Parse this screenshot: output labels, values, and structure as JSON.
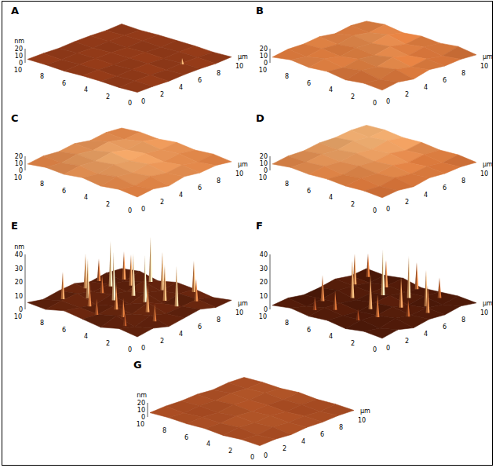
{
  "chart_data": [
    {
      "type": "surface",
      "panel": "A",
      "z_label": "nm",
      "x_label": "µm",
      "xlim": [
        0,
        10
      ],
      "ylim": [
        0,
        10
      ],
      "zlim": [
        0,
        20
      ],
      "xticks": [
        0,
        2,
        4,
        6,
        8,
        10
      ],
      "yticks": [
        0,
        2,
        4,
        6,
        8,
        10
      ],
      "zticks": [
        0,
        10,
        20
      ],
      "heights": [
        [
          5,
          5,
          4,
          5,
          5,
          4,
          5
        ],
        [
          4,
          5,
          5,
          4,
          5,
          5,
          4
        ],
        [
          5,
          4,
          5,
          5,
          4,
          5,
          5
        ],
        [
          5,
          5,
          4,
          5,
          5,
          4,
          5
        ],
        [
          4,
          5,
          5,
          5,
          4,
          5,
          5
        ],
        [
          5,
          4,
          5,
          4,
          5,
          5,
          4
        ],
        [
          5,
          5,
          4,
          5,
          5,
          4,
          5
        ]
      ],
      "peaks": [
        {
          "x": 6.5,
          "y": 1.5,
          "z": 14
        }
      ]
    },
    {
      "type": "surface",
      "panel": "B",
      "x_label": "µm",
      "xlim": [
        0,
        10
      ],
      "ylim": [
        0,
        10
      ],
      "zlim": [
        0,
        20
      ],
      "xticks": [
        0,
        2,
        4,
        6,
        8,
        10
      ],
      "yticks": [
        0,
        2,
        4,
        6,
        8,
        10
      ],
      "zticks": [
        0,
        10,
        20
      ],
      "heights": [
        [
          8,
          11,
          7,
          12,
          9,
          10,
          8
        ],
        [
          10,
          7,
          13,
          8,
          11,
          7,
          12
        ],
        [
          7,
          12,
          9,
          14,
          8,
          12,
          9
        ],
        [
          11,
          8,
          12,
          9,
          13,
          8,
          11
        ],
        [
          9,
          13,
          8,
          12,
          10,
          14,
          8
        ],
        [
          12,
          8,
          11,
          9,
          13,
          9,
          12
        ],
        [
          8,
          11,
          10,
          12,
          8,
          11,
          9
        ]
      ],
      "peaks": []
    },
    {
      "type": "surface",
      "panel": "C",
      "x_label": "µm",
      "xlim": [
        0,
        10
      ],
      "ylim": [
        0,
        10
      ],
      "zlim": [
        0,
        20
      ],
      "xticks": [
        0,
        2,
        4,
        6,
        8,
        10
      ],
      "yticks": [
        0,
        2,
        4,
        6,
        8,
        10
      ],
      "zticks": [
        0,
        10,
        20
      ],
      "heights": [
        [
          9,
          12,
          8,
          13,
          10,
          12,
          9
        ],
        [
          12,
          9,
          14,
          10,
          13,
          9,
          12
        ],
        [
          9,
          14,
          11,
          15,
          10,
          13,
          10
        ],
        [
          13,
          10,
          15,
          12,
          14,
          11,
          13
        ],
        [
          10,
          14,
          12,
          16,
          11,
          15,
          10
        ],
        [
          12,
          10,
          14,
          11,
          15,
          10,
          12
        ],
        [
          9,
          12,
          10,
          13,
          9,
          12,
          10
        ]
      ],
      "peaks": []
    },
    {
      "type": "surface",
      "panel": "D",
      "x_label": "µm",
      "xlim": [
        0,
        10
      ],
      "ylim": [
        0,
        10
      ],
      "zlim": [
        0,
        20
      ],
      "xticks": [
        0,
        2,
        4,
        6,
        8,
        10
      ],
      "yticks": [
        0,
        2,
        4,
        6,
        8,
        10
      ],
      "zticks": [
        0,
        10,
        20
      ],
      "heights": [
        [
          8,
          10,
          7,
          11,
          9,
          10,
          8
        ],
        [
          10,
          8,
          12,
          9,
          11,
          8,
          11
        ],
        [
          9,
          12,
          10,
          13,
          9,
          12,
          10
        ],
        [
          11,
          9,
          13,
          11,
          14,
          10,
          13
        ],
        [
          10,
          13,
          11,
          15,
          12,
          16,
          12
        ],
        [
          12,
          11,
          14,
          12,
          16,
          13,
          15
        ],
        [
          9,
          12,
          11,
          14,
          13,
          15,
          14
        ]
      ],
      "peaks": []
    },
    {
      "type": "surface",
      "panel": "E",
      "z_label": "nm",
      "x_label": "µm",
      "xlim": [
        0,
        10
      ],
      "ylim": [
        0,
        10
      ],
      "zlim": [
        0,
        40
      ],
      "xticks": [
        0,
        2,
        4,
        6,
        8,
        10
      ],
      "yticks": [
        0,
        2,
        4,
        6,
        8,
        10
      ],
      "zticks": [
        0,
        10,
        20,
        30,
        40
      ],
      "heights": [
        [
          4,
          6,
          3,
          5,
          7,
          4,
          5
        ],
        [
          6,
          3,
          7,
          4,
          5,
          6,
          3
        ],
        [
          3,
          7,
          4,
          8,
          3,
          6,
          5
        ],
        [
          5,
          4,
          6,
          3,
          7,
          4,
          6
        ],
        [
          7,
          5,
          3,
          6,
          4,
          7,
          3
        ],
        [
          4,
          6,
          7,
          4,
          5,
          3,
          6
        ],
        [
          5,
          3,
          5,
          6,
          3,
          5,
          4
        ]
      ],
      "peaks": [
        {
          "x": 2,
          "y": 8.5,
          "z": 26
        },
        {
          "x": 3.5,
          "y": 7.5,
          "z": 34
        },
        {
          "x": 5,
          "y": 9,
          "z": 30
        },
        {
          "x": 6.5,
          "y": 8,
          "z": 38
        },
        {
          "x": 2.5,
          "y": 6.5,
          "z": 22
        },
        {
          "x": 4.5,
          "y": 6,
          "z": 40
        },
        {
          "x": 7.5,
          "y": 7,
          "z": 28
        },
        {
          "x": 6,
          "y": 5.5,
          "z": 36
        },
        {
          "x": 3,
          "y": 4.5,
          "z": 24
        },
        {
          "x": 8.5,
          "y": 5,
          "z": 32
        },
        {
          "x": 5.5,
          "y": 4,
          "z": 40
        },
        {
          "x": 7,
          "y": 3.5,
          "z": 30
        },
        {
          "x": 4,
          "y": 2.5,
          "z": 26
        },
        {
          "x": 2,
          "y": 3,
          "z": 20
        },
        {
          "x": 6.5,
          "y": 2,
          "z": 34
        },
        {
          "x": 8,
          "y": 1.5,
          "z": 22
        },
        {
          "x": 9,
          "y": 6.5,
          "z": 38
        },
        {
          "x": 8.5,
          "y": 8.5,
          "z": 24
        },
        {
          "x": 7,
          "y": 9.5,
          "z": 20
        },
        {
          "x": 3,
          "y": 1,
          "z": 18
        },
        {
          "x": 1.5,
          "y": 5,
          "z": 16
        },
        {
          "x": 9.5,
          "y": 3,
          "z": 28
        },
        {
          "x": 5,
          "y": 7.5,
          "z": 18
        },
        {
          "x": 1,
          "y": 2,
          "z": 14
        }
      ]
    },
    {
      "type": "surface",
      "panel": "F",
      "x_label": "µm",
      "xlim": [
        0,
        10
      ],
      "ylim": [
        0,
        10
      ],
      "zlim": [
        0,
        40
      ],
      "xticks": [
        0,
        2,
        4,
        6,
        8,
        10
      ],
      "yticks": [
        0,
        2,
        4,
        6,
        8,
        10
      ],
      "zticks": [
        0,
        10,
        20,
        30,
        40
      ],
      "heights": [
        [
          3,
          5,
          2,
          4,
          3,
          5,
          3
        ],
        [
          4,
          2,
          5,
          3,
          4,
          2,
          4
        ],
        [
          2,
          4,
          3,
          5,
          2,
          4,
          3
        ],
        [
          4,
          3,
          2,
          4,
          5,
          3,
          2
        ],
        [
          3,
          5,
          4,
          2,
          3,
          4,
          5
        ],
        [
          5,
          2,
          3,
          5,
          4,
          2,
          3
        ],
        [
          3,
          4,
          2,
          3,
          5,
          3,
          4
        ]
      ],
      "peaks": [
        {
          "x": 3,
          "y": 8,
          "z": 22
        },
        {
          "x": 5,
          "y": 7,
          "z": 30
        },
        {
          "x": 7,
          "y": 8.5,
          "z": 26
        },
        {
          "x": 2,
          "y": 6,
          "z": 18
        },
        {
          "x": 6.5,
          "y": 5.5,
          "z": 38
        },
        {
          "x": 8,
          "y": 6.5,
          "z": 24
        },
        {
          "x": 4,
          "y": 4.5,
          "z": 28
        },
        {
          "x": 7.5,
          "y": 4,
          "z": 34
        },
        {
          "x": 3,
          "y": 3,
          "z": 20
        },
        {
          "x": 5.5,
          "y": 3,
          "z": 26
        },
        {
          "x": 7,
          "y": 2,
          "z": 30
        },
        {
          "x": 9,
          "y": 2.5,
          "z": 18
        },
        {
          "x": 4.5,
          "y": 1.5,
          "z": 16
        },
        {
          "x": 9.5,
          "y": 5,
          "z": 22
        },
        {
          "x": 9,
          "y": 9,
          "z": 20
        },
        {
          "x": 1,
          "y": 7,
          "z": 14
        },
        {
          "x": 6,
          "y": 1,
          "z": 24
        },
        {
          "x": 1.5,
          "y": 3.5,
          "z": 12
        }
      ]
    },
    {
      "type": "surface",
      "panel": "G",
      "z_label": "nm",
      "x_label": "µm",
      "xlim": [
        0,
        10
      ],
      "ylim": [
        0,
        10
      ],
      "zlim": [
        0,
        20
      ],
      "xticks": [
        0,
        2,
        4,
        6,
        8,
        10
      ],
      "yticks": [
        0,
        2,
        4,
        6,
        8,
        10
      ],
      "zticks": [
        0,
        10,
        20
      ],
      "heights": [
        [
          6,
          7,
          5,
          7,
          6,
          7,
          6
        ],
        [
          7,
          5,
          8,
          6,
          7,
          5,
          7
        ],
        [
          5,
          8,
          6,
          8,
          5,
          7,
          6
        ],
        [
          7,
          6,
          8,
          6,
          7,
          6,
          8
        ],
        [
          6,
          7,
          5,
          8,
          6,
          8,
          6
        ],
        [
          7,
          5,
          7,
          6,
          8,
          6,
          7
        ],
        [
          6,
          7,
          6,
          7,
          5,
          7,
          6
        ]
      ],
      "peaks": []
    }
  ]
}
